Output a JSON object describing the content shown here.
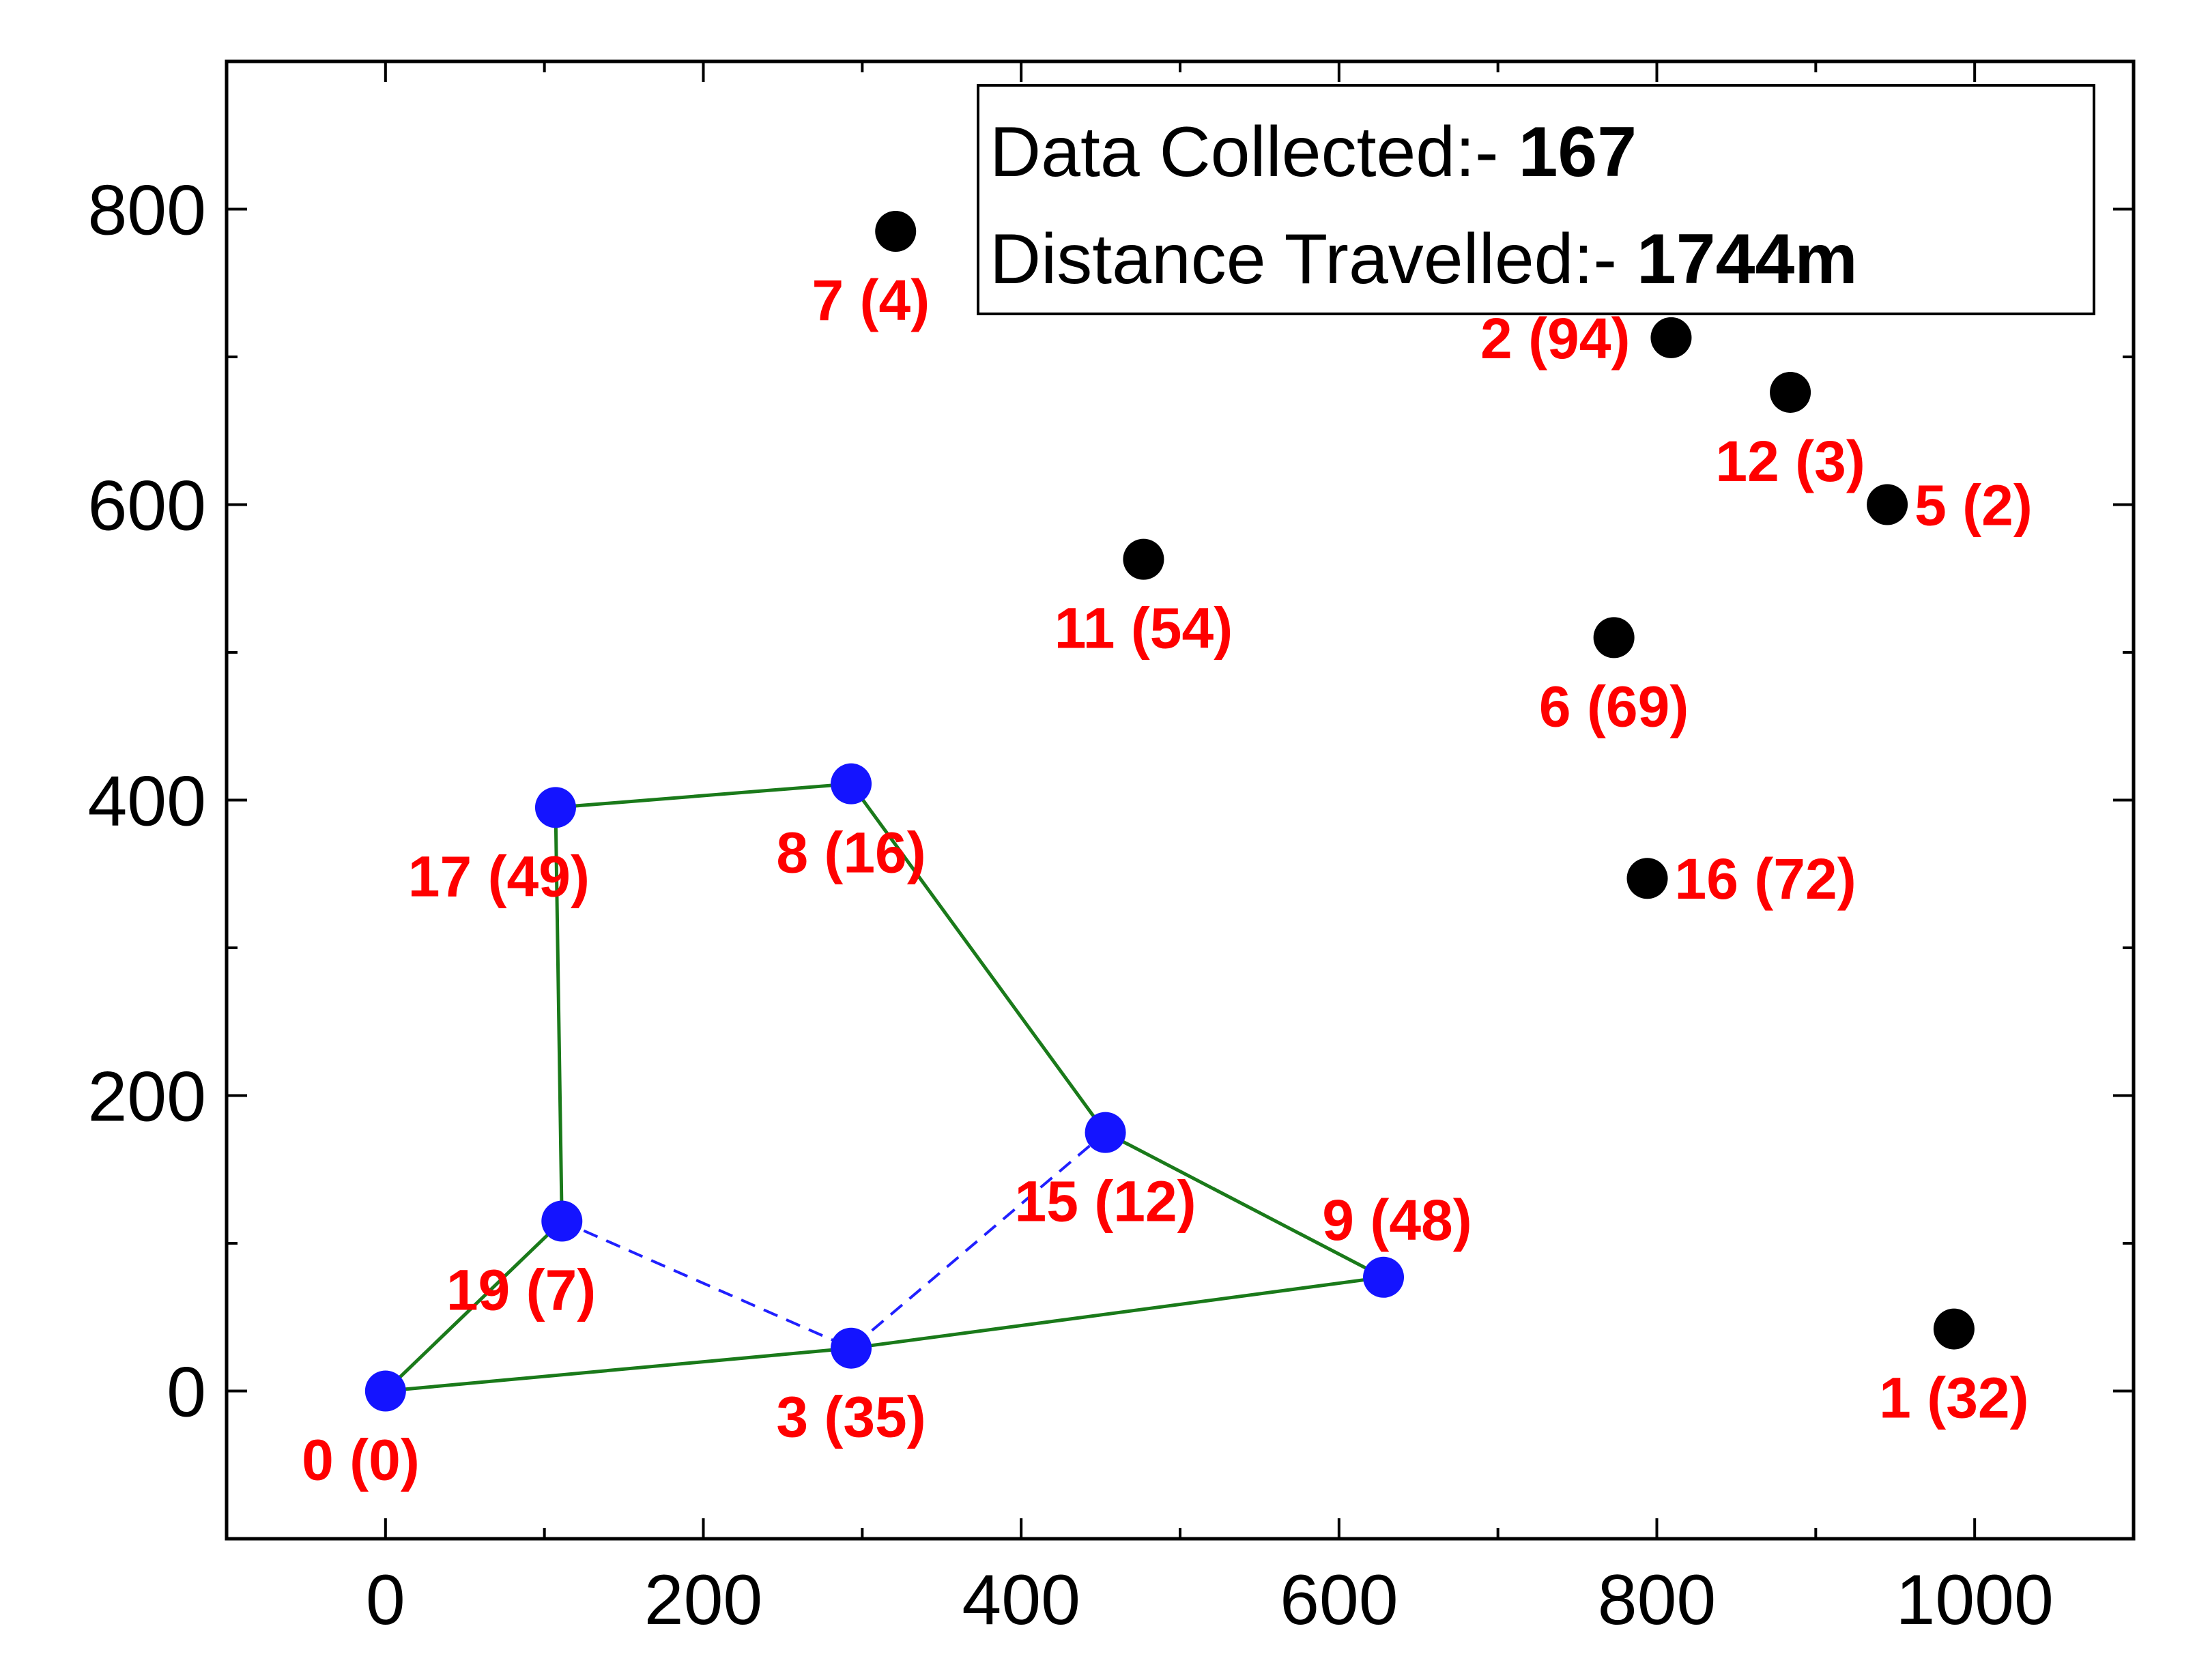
{
  "chart_data": {
    "type": "scatter",
    "title": "",
    "xlabel": "",
    "ylabel": "",
    "xlim": [
      -100,
      1100
    ],
    "ylim": [
      -100,
      900
    ],
    "x_ticks": [
      0,
      200,
      400,
      600,
      800,
      1000
    ],
    "y_ticks": [
      0,
      200,
      400,
      600,
      800
    ],
    "x_tick_labels": [
      "0",
      "200",
      "400",
      "600",
      "800",
      "1000"
    ],
    "y_tick_labels": [
      "0",
      "200",
      "400",
      "600",
      "800"
    ],
    "grid": false,
    "legend": {
      "position": "top-right",
      "lines": [
        {
          "label": "Data Collected:- ",
          "value": "167"
        },
        {
          "label": "Distance Travelled:- ",
          "value": "1744m"
        }
      ]
    },
    "colors": {
      "visited": "#1414ff",
      "unvisited": "#000000",
      "label": "#ff0000",
      "route_solid": "#1a7a1a",
      "route_dashed": "#2020ff"
    },
    "points": [
      {
        "id": "0",
        "label": "0 (0)",
        "x": 0,
        "y": 0,
        "visited": true,
        "label_pos": "below-left"
      },
      {
        "id": "19",
        "label": "19 (7)",
        "x": 111,
        "y": 115,
        "visited": true,
        "label_pos": "below-left"
      },
      {
        "id": "3",
        "label": "3 (35)",
        "x": 293,
        "y": 29,
        "visited": true,
        "label_pos": "below"
      },
      {
        "id": "15",
        "label": "15 (12)",
        "x": 453,
        "y": 175,
        "visited": true,
        "label_pos": "below"
      },
      {
        "id": "9",
        "label": "9 (48)",
        "x": 628,
        "y": 77,
        "visited": true,
        "label_pos": "above"
      },
      {
        "id": "8",
        "label": "8 (16)",
        "x": 293,
        "y": 411,
        "visited": true,
        "label_pos": "below"
      },
      {
        "id": "17",
        "label": "17 (49)",
        "x": 107,
        "y": 395,
        "visited": true,
        "label_pos": "below-left"
      },
      {
        "id": "7",
        "label": "7 (4)",
        "x": 321,
        "y": 785,
        "visited": false,
        "label_pos": "below-left"
      },
      {
        "id": "2",
        "label": "2 (94)",
        "x": 809,
        "y": 713,
        "visited": false,
        "label_pos": "left"
      },
      {
        "id": "12",
        "label": "12 (3)",
        "x": 884,
        "y": 676,
        "visited": false,
        "label_pos": "below"
      },
      {
        "id": "5",
        "label": "5 (2)",
        "x": 945,
        "y": 600,
        "visited": false,
        "label_pos": "right"
      },
      {
        "id": "11",
        "label": "11 (54)",
        "x": 477,
        "y": 563,
        "visited": false,
        "label_pos": "below"
      },
      {
        "id": "6",
        "label": "6 (69)",
        "x": 773,
        "y": 510,
        "visited": false,
        "label_pos": "below"
      },
      {
        "id": "16",
        "label": "16 (72)",
        "x": 794,
        "y": 347,
        "visited": false,
        "label_pos": "right"
      },
      {
        "id": "1",
        "label": "1 (32)",
        "x": 987,
        "y": 42,
        "visited": false,
        "label_pos": "below"
      }
    ],
    "route_solid": [
      "0",
      "19",
      "17",
      "8",
      "15",
      "9",
      "3",
      "0"
    ],
    "route_dashed": [
      "17",
      "8",
      "15",
      "9",
      "15",
      "3",
      "19",
      "17"
    ]
  }
}
